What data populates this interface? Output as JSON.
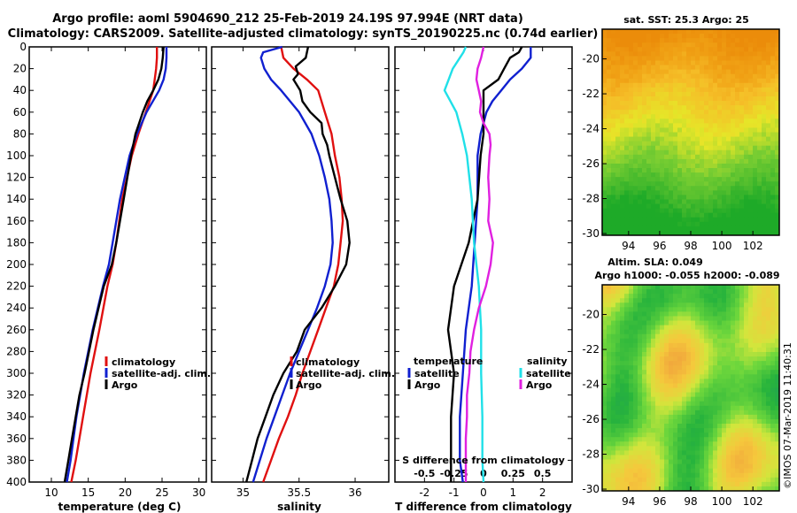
{
  "header": {
    "title_line1": "Argo profile: aoml 5904690_212 25-Feb-2019 24.19S 97.994E (NRT data)",
    "title_line2": "Climatology: CARS2009. Satellite-adjusted climatology: synTS_20190225.nc (0.74d earlier)"
  },
  "colors": {
    "climatology": "#e01010",
    "satellite": "#1020d0",
    "argo": "#000000",
    "sat_cyan": "#20e0e8",
    "argo_magenta": "#e020e0"
  },
  "chart_data": [
    {
      "type": "line",
      "id": "temperature",
      "xlabel": "temperature (deg C)",
      "xlim": [
        7,
        31
      ],
      "ylim": [
        400,
        0
      ],
      "xticks": [
        10,
        15,
        20,
        25,
        30
      ],
      "yticks": [
        0,
        20,
        40,
        60,
        80,
        100,
        120,
        140,
        160,
        180,
        200,
        220,
        240,
        260,
        280,
        300,
        320,
        340,
        360,
        380,
        400
      ],
      "legend": [
        "climatology",
        "satellite-adj. clim.",
        "Argo"
      ],
      "series": [
        {
          "name": "climatology",
          "color": "#e01010",
          "depth": [
            0,
            10,
            20,
            30,
            40,
            60,
            80,
            100,
            140,
            180,
            200,
            220,
            260,
            300,
            340,
            380,
            400
          ],
          "values": [
            24.3,
            24.3,
            24.2,
            24.0,
            23.8,
            22.8,
            21.8,
            20.9,
            19.6,
            18.8,
            18.3,
            17.6,
            16.5,
            15.3,
            14.3,
            13.3,
            12.7
          ]
        },
        {
          "name": "satellite-adj. clim.",
          "color": "#1020d0",
          "depth": [
            0,
            10,
            20,
            30,
            40,
            60,
            80,
            100,
            140,
            180,
            200,
            220,
            260,
            300,
            340,
            380,
            400
          ],
          "values": [
            25.6,
            25.6,
            25.5,
            25.2,
            24.6,
            22.9,
            21.6,
            20.6,
            19.3,
            18.3,
            17.8,
            17.0,
            15.6,
            14.4,
            13.4,
            12.6,
            12.1
          ]
        },
        {
          "name": "Argo",
          "color": "#000000",
          "depth": [
            0,
            10,
            20,
            30,
            40,
            50,
            60,
            70,
            80,
            100,
            120,
            140,
            160,
            180,
            200,
            220,
            240,
            260,
            280,
            300,
            320,
            340,
            360,
            380,
            400
          ],
          "values": [
            25.2,
            25.1,
            24.9,
            24.5,
            23.8,
            23.0,
            22.4,
            21.9,
            21.4,
            20.8,
            20.3,
            19.8,
            19.3,
            18.8,
            18.2,
            17.1,
            16.4,
            15.7,
            15.1,
            14.5,
            13.8,
            13.3,
            12.8,
            12.3,
            11.8
          ]
        }
      ]
    },
    {
      "type": "line",
      "id": "salinity",
      "xlabel": "salinity",
      "xlim": [
        34.72,
        36.3
      ],
      "ylim": [
        400,
        0
      ],
      "xticks": [
        35,
        35.5,
        36
      ],
      "legend": [
        "climatology",
        "satellite-adj. clim.",
        "Argo"
      ],
      "series": [
        {
          "name": "climatology",
          "color": "#e01010",
          "depth": [
            0,
            10,
            20,
            30,
            40,
            60,
            80,
            100,
            120,
            140,
            160,
            180,
            200,
            220,
            240,
            260,
            280,
            300,
            320,
            340,
            360,
            380,
            400
          ],
          "values": [
            35.34,
            35.36,
            35.45,
            35.57,
            35.67,
            35.73,
            35.79,
            35.82,
            35.86,
            35.88,
            35.89,
            35.87,
            35.85,
            35.81,
            35.74,
            35.67,
            35.6,
            35.53,
            35.47,
            35.4,
            35.32,
            35.25,
            35.18
          ]
        },
        {
          "name": "satellite-adj. clim.",
          "color": "#1020d0",
          "depth": [
            0,
            5,
            10,
            20,
            30,
            40,
            60,
            80,
            100,
            120,
            140,
            160,
            180,
            200,
            220,
            240,
            260,
            280,
            300,
            320,
            340,
            360,
            380,
            400
          ],
          "values": [
            35.35,
            35.18,
            35.16,
            35.19,
            35.25,
            35.34,
            35.5,
            35.61,
            35.68,
            35.73,
            35.77,
            35.79,
            35.8,
            35.78,
            35.73,
            35.66,
            35.58,
            35.5,
            35.42,
            35.35,
            35.28,
            35.21,
            35.15,
            35.09
          ]
        },
        {
          "name": "Argo",
          "color": "#000000",
          "depth": [
            0,
            10,
            18,
            25,
            30,
            40,
            50,
            60,
            70,
            80,
            90,
            100,
            120,
            140,
            160,
            180,
            200,
            220,
            240,
            260,
            280,
            300,
            320,
            340,
            360,
            380,
            400
          ],
          "values": [
            35.58,
            35.56,
            35.47,
            35.49,
            35.45,
            35.51,
            35.53,
            35.6,
            35.7,
            35.71,
            35.75,
            35.77,
            35.82,
            35.87,
            35.93,
            35.95,
            35.92,
            35.82,
            35.7,
            35.55,
            35.48,
            35.36,
            35.27,
            35.2,
            35.13,
            35.08,
            35.03
          ]
        }
      ]
    },
    {
      "type": "line",
      "id": "difference",
      "xlabel": "T difference from climatology",
      "xlim": [
        -3,
        3
      ],
      "ylim": [
        400,
        0
      ],
      "xticks": [
        -2,
        -1,
        0,
        1,
        2
      ],
      "top_axis_label": "S difference from climatology",
      "top_ticks": [
        "-0.5",
        "-0.25",
        "0",
        "0.25",
        "0.5"
      ],
      "legend_temperature_header": "temperature",
      "legend_salinity_header": "salinity",
      "legend": [
        "satellite",
        "Argo",
        "satellite",
        "Argo"
      ],
      "series": [
        {
          "name": "T satellite",
          "color": "#1020d0",
          "depth": [
            0,
            10,
            20,
            30,
            40,
            50,
            60,
            80,
            100,
            140,
            180,
            220,
            260,
            300,
            340,
            380,
            400
          ],
          "values": [
            1.6,
            1.6,
            1.3,
            0.9,
            0.6,
            0.3,
            0.1,
            -0.1,
            -0.2,
            -0.2,
            -0.3,
            -0.4,
            -0.6,
            -0.7,
            -0.8,
            -0.8,
            -0.7
          ]
        },
        {
          "name": "T Argo",
          "color": "#000000",
          "depth": [
            0,
            5,
            10,
            20,
            30,
            40,
            50,
            60,
            70,
            80,
            100,
            140,
            180,
            220,
            260,
            300,
            340,
            380,
            400
          ],
          "values": [
            1.3,
            1.2,
            0.9,
            0.7,
            0.5,
            0.0,
            0.0,
            0.0,
            0.0,
            0.0,
            -0.1,
            -0.2,
            -0.5,
            -1.0,
            -1.2,
            -1.0,
            -1.1,
            -1.1,
            -1.1
          ]
        },
        {
          "name": "S satellite",
          "color": "#20e0e8",
          "depth": [
            0,
            5,
            10,
            20,
            40,
            60,
            80,
            100,
            140,
            180,
            220,
            260,
            300,
            340,
            380,
            400
          ],
          "values": [
            -0.15,
            -0.17,
            -0.2,
            -0.26,
            -0.33,
            -0.23,
            -0.18,
            -0.14,
            -0.1,
            -0.08,
            -0.04,
            -0.02,
            -0.02,
            -0.01,
            -0.01,
            0.0
          ]
        },
        {
          "name": "S Argo",
          "color": "#e020e0",
          "depth": [
            0,
            10,
            20,
            30,
            40,
            50,
            60,
            70,
            80,
            90,
            100,
            120,
            140,
            160,
            180,
            200,
            220,
            240,
            260,
            280,
            300,
            320,
            340,
            360,
            380,
            400
          ],
          "values": [
            0.0,
            -0.02,
            -0.05,
            -0.06,
            -0.04,
            -0.02,
            -0.03,
            0.0,
            0.05,
            0.06,
            0.05,
            0.04,
            0.05,
            0.04,
            0.08,
            0.06,
            0.02,
            -0.04,
            -0.08,
            -0.11,
            -0.12,
            -0.14,
            -0.14,
            -0.15,
            -0.15,
            -0.15
          ]
        }
      ]
    },
    {
      "type": "heatmap",
      "id": "sst_map",
      "title": "sat. SST: 25.3 Argo: 25",
      "xticks": [
        94,
        96,
        98,
        100,
        102
      ],
      "yticks": [
        -20,
        -22,
        -24,
        -26,
        -28,
        -30
      ],
      "xlim": [
        92.3,
        103.7
      ],
      "ylim": [
        -30.1,
        -18.3
      ]
    },
    {
      "type": "heatmap",
      "id": "sla_map",
      "title_line1": "Altim. SLA: 0.049",
      "title_line2": "Argo h1000: -0.055 h2000: -0.089",
      "xticks": [
        94,
        96,
        98,
        100,
        102
      ],
      "yticks": [
        -20,
        -22,
        -24,
        -26,
        -28,
        -30
      ],
      "xlim": [
        92.3,
        103.7
      ],
      "ylim": [
        -30.1,
        -18.3
      ]
    }
  ],
  "side_text": "©IMOS 07-Mar-2019 11:40:31"
}
